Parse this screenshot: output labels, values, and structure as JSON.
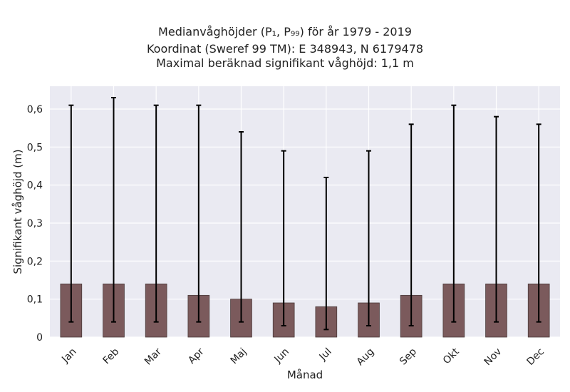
{
  "chart_data": {
    "type": "bar",
    "title_lines": [
      "Medianvåghöjder (P₁, P₉₉) för år 1979 - 2019",
      "Koordinat (Sweref 99 TM): E 348943, N 6179478",
      "Maximal beräknad signifikant våghöjd: 1,1 m"
    ],
    "xlabel": "Månad",
    "ylabel": "Signifikant våghöjd (m)",
    "categories": [
      "Jan",
      "Feb",
      "Mar",
      "Apr",
      "Maj",
      "Jun",
      "Jul",
      "Aug",
      "Sep",
      "Okt",
      "Nov",
      "Dec"
    ],
    "values": [
      0.14,
      0.14,
      0.14,
      0.11,
      0.1,
      0.09,
      0.08,
      0.09,
      0.11,
      0.14,
      0.14,
      0.14
    ],
    "error_low": [
      0.04,
      0.04,
      0.04,
      0.04,
      0.04,
      0.03,
      0.02,
      0.03,
      0.03,
      0.04,
      0.04,
      0.04
    ],
    "error_high": [
      0.61,
      0.63,
      0.61,
      0.61,
      0.54,
      0.49,
      0.42,
      0.49,
      0.56,
      0.61,
      0.58,
      0.56
    ],
    "ylim": [
      0,
      0.66
    ],
    "yticks": [
      0,
      0.1,
      0.2,
      0.3,
      0.4,
      0.5,
      0.6
    ],
    "ytick_labels": [
      "0",
      "0,1",
      "0,2",
      "0,3",
      "0,4",
      "0,5",
      "0,6"
    ],
    "grid": true,
    "colors": {
      "bar": "#7b5a5c",
      "bar_edge": "#4a3a3a",
      "error": "#000000",
      "plot_bg": "#eaeaf2",
      "grid": "#ffffff"
    }
  }
}
